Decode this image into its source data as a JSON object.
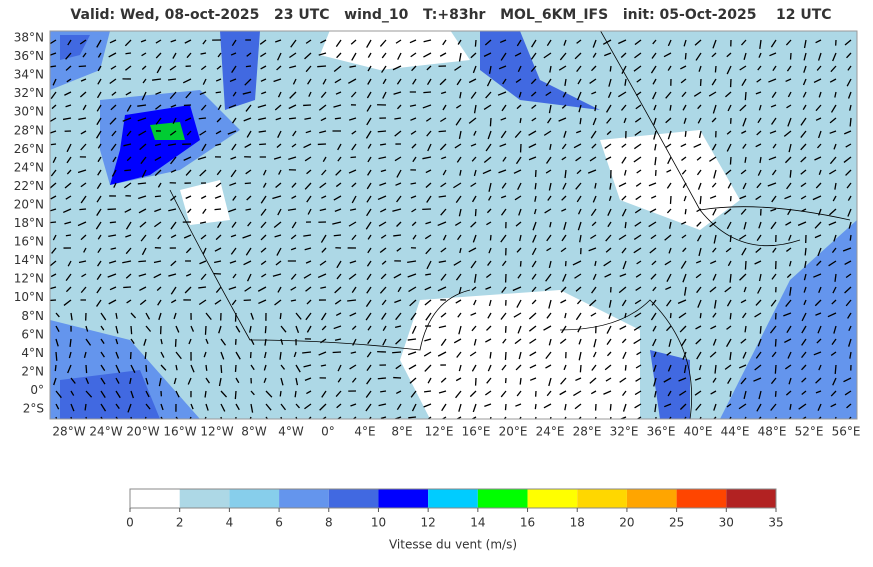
{
  "header": {
    "title": "Valid: Wed, 08-oct-2025   23 UTC   wind_10   T:+83hr   MOL_6KM_IFS   init: 05-Oct-2025    12 UTC"
  },
  "map": {
    "lat_labels": [
      "38°N",
      "36°N",
      "34°N",
      "32°N",
      "30°N",
      "28°N",
      "26°N",
      "24°N",
      "22°N",
      "20°N",
      "18°N",
      "16°N",
      "14°N",
      "12°N",
      "10°N",
      "8°N",
      "6°N",
      "4°N",
      "2°N",
      "0°",
      "2°S"
    ],
    "lon_labels": [
      "28°W",
      "24°W",
      "20°W",
      "16°W",
      "12°W",
      "8°W",
      "4°W",
      "0°",
      "4°E",
      "8°E",
      "12°E",
      "16°E",
      "20°E",
      "24°E",
      "28°E",
      "32°E",
      "36°E",
      "40°E",
      "44°E",
      "48°E",
      "52°E",
      "56°E"
    ]
  },
  "colorbar": {
    "ticks": [
      0,
      2,
      4,
      6,
      8,
      10,
      12,
      14,
      16,
      18,
      20,
      25,
      30,
      35
    ],
    "colors": [
      "#ffffff",
      "#add8e6",
      "#87ceeb",
      "#6495ed",
      "#4169e1",
      "#0000ff",
      "#00ccff",
      "#00ff00",
      "#ffff00",
      "#ffd700",
      "#ffa500",
      "#ff4500",
      "#b22222"
    ],
    "label": "Vitesse du vent (m/s)"
  }
}
